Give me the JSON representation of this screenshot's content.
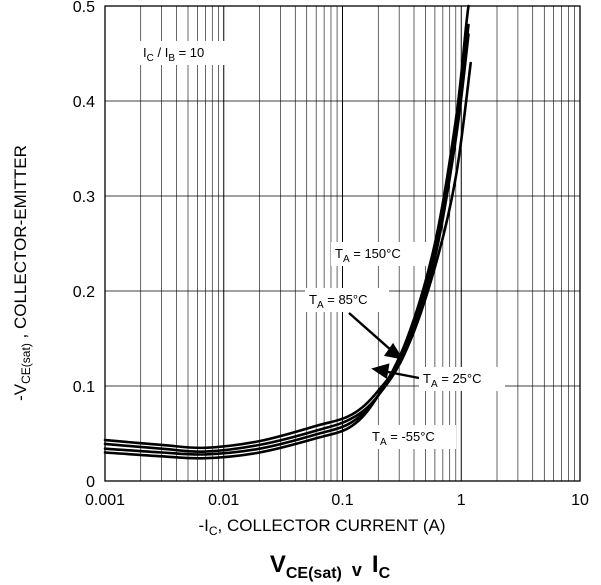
{
  "chart_data": {
    "type": "line",
    "title": {
      "main": "V",
      "sub": "CE(sat)",
      "mid": "v",
      "end": "I",
      "end_sub": "C"
    },
    "xlabel": {
      "pre": "-I",
      "sub": "C",
      "post": ", COLLECTOR CURRENT (A)"
    },
    "ylabel": {
      "pre": "-V",
      "sub": "CE(sat)",
      "post": " , COLLECTOR-EMITTER"
    },
    "x_scale": "log",
    "xlim": [
      0.001,
      10
    ],
    "ylim": [
      0,
      0.5
    ],
    "x_ticks": [
      {
        "value": 0.001,
        "label": "0.001"
      },
      {
        "value": 0.01,
        "label": "0.01"
      },
      {
        "value": 0.1,
        "label": "0.1"
      },
      {
        "value": 1,
        "label": "1"
      },
      {
        "value": 10,
        "label": "10"
      }
    ],
    "y_ticks": [
      {
        "value": 0,
        "label": "0"
      },
      {
        "value": 0.1,
        "label": "0.1"
      },
      {
        "value": 0.2,
        "label": "0.2"
      },
      {
        "value": 0.3,
        "label": "0.3"
      },
      {
        "value": 0.4,
        "label": "0.4"
      },
      {
        "value": 0.5,
        "label": "0.5"
      }
    ],
    "grid": true,
    "condition": {
      "pre": "I",
      "sub1": "C",
      "mid": " / I",
      "sub2": "B",
      "post": " = 10"
    },
    "series": [
      {
        "name": {
          "pre": "T",
          "sub": "A",
          "post": " = 150°C"
        },
        "x": [
          0.001,
          0.003,
          0.007,
          0.02,
          0.06,
          0.12,
          0.2,
          0.35,
          0.6,
          0.9,
          1.1,
          1.15
        ],
        "y": [
          0.03,
          0.026,
          0.024,
          0.03,
          0.045,
          0.058,
          0.09,
          0.15,
          0.25,
          0.38,
          0.48,
          0.5
        ]
      },
      {
        "name": {
          "pre": "T",
          "sub": "A",
          "post": " = 85°C"
        },
        "x": [
          0.001,
          0.003,
          0.007,
          0.02,
          0.06,
          0.12,
          0.2,
          0.35,
          0.6,
          0.9,
          1.15
        ],
        "y": [
          0.034,
          0.03,
          0.028,
          0.034,
          0.049,
          0.062,
          0.09,
          0.145,
          0.24,
          0.37,
          0.48
        ]
      },
      {
        "name": {
          "pre": "T",
          "sub": "A",
          "post": " = 25°C"
        },
        "x": [
          0.001,
          0.003,
          0.007,
          0.02,
          0.06,
          0.12,
          0.2,
          0.35,
          0.6,
          0.9,
          1.15
        ],
        "y": [
          0.039,
          0.034,
          0.031,
          0.038,
          0.053,
          0.066,
          0.09,
          0.14,
          0.235,
          0.36,
          0.47
        ]
      },
      {
        "name": {
          "pre": "T",
          "sub": "A",
          "post": " = -55°C"
        },
        "x": [
          0.001,
          0.003,
          0.007,
          0.02,
          0.06,
          0.12,
          0.2,
          0.35,
          0.6,
          0.9,
          1.2
        ],
        "y": [
          0.043,
          0.038,
          0.035,
          0.042,
          0.058,
          0.07,
          0.095,
          0.14,
          0.225,
          0.32,
          0.44
        ]
      }
    ]
  }
}
